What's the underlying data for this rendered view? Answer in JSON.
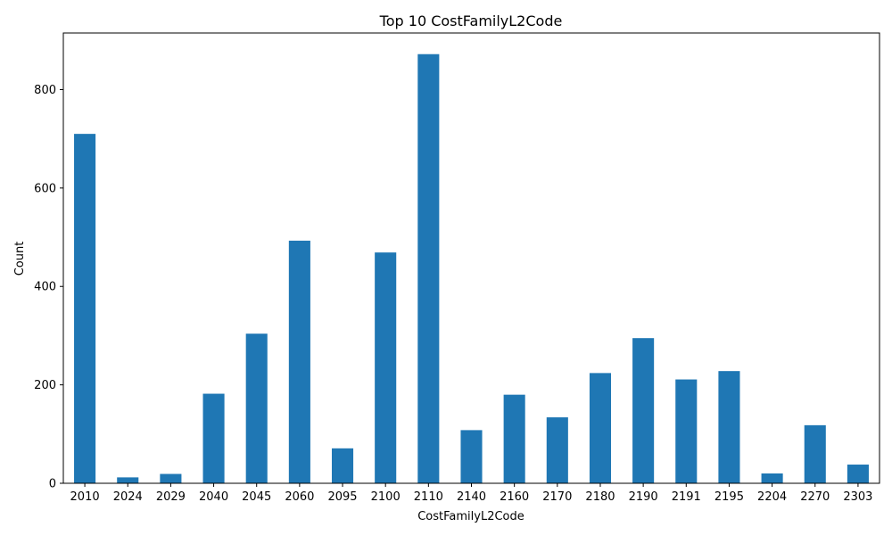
{
  "chart_data": {
    "type": "bar",
    "title": "Top 10 CostFamilyL2Code",
    "xlabel": "CostFamilyL2Code",
    "ylabel": "Count",
    "categories": [
      "2010",
      "2024",
      "2029",
      "2040",
      "2045",
      "2060",
      "2095",
      "2100",
      "2110",
      "2140",
      "2160",
      "2170",
      "2180",
      "2190",
      "2191",
      "2195",
      "2204",
      "2270",
      "2303"
    ],
    "values": [
      710,
      12,
      19,
      182,
      304,
      493,
      71,
      469,
      872,
      108,
      180,
      134,
      224,
      295,
      211,
      228,
      20,
      118,
      38
    ],
    "ylim": [
      0,
      915
    ],
    "yticks": [
      0,
      200,
      400,
      600,
      800
    ],
    "bar_color": "#1f77b4",
    "grid": false,
    "legend": "none"
  }
}
